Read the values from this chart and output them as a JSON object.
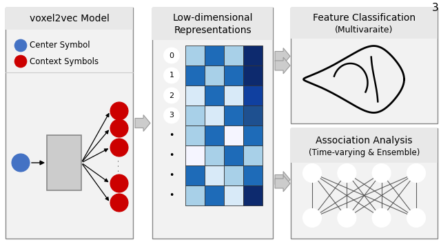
{
  "bg_color": "#ffffff",
  "panel_bg": "#f2f2f2",
  "panel_border": "#888888",
  "left_panel_title": "voxel2vec Model",
  "mid_panel_title": "Low-dimensional\nRepresentations",
  "right_top_title": "Feature Classification",
  "right_top_subtitle": "(Multivaraite)",
  "right_bot_title": "Association Analysis",
  "right_bot_subtitle": "(Time-varying & Ensemble)",
  "legend_center_label": "Center Symbol",
  "legend_context_label": "Context Symbols",
  "center_color": "#4472C4",
  "context_color": "#CC0000",
  "matrix_colors": [
    [
      "#a8d0e8",
      "#1e6bb8",
      "#a8d0e8",
      "#0d2a6e"
    ],
    [
      "#1e6bb8",
      "#a8d0e8",
      "#1e6bb8",
      "#0d2a6e"
    ],
    [
      "#d8eaf8",
      "#1e6bb8",
      "#d8eaf8",
      "#1040a0"
    ],
    [
      "#a8d0e8",
      "#d8eaf8",
      "#1e6bb8",
      "#1e5090"
    ],
    [
      "#a8d0e8",
      "#1e6bb8",
      "#f5f5ff",
      "#1e6bb8"
    ],
    [
      "#f5f5ff",
      "#a8d0e8",
      "#1e6bb8",
      "#a8d0e8"
    ],
    [
      "#1e6bb8",
      "#d8eaf8",
      "#a8d0e8",
      "#1e6bb8"
    ],
    [
      "#a8d0e8",
      "#1e6bb8",
      "#d8eaf8",
      "#0d2a6e"
    ]
  ],
  "row_labels": [
    "0",
    "1",
    "2",
    "3",
    "·",
    "·",
    "·",
    "·"
  ],
  "arrow_color": "#bbbbbb",
  "page_num": "3"
}
